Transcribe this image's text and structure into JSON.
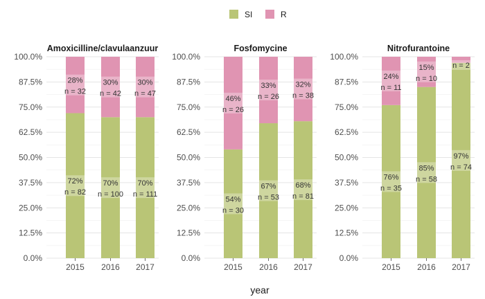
{
  "chart_data": {
    "type": "bar",
    "stacked": "percent",
    "xlabel": "year",
    "ylim": [
      0,
      100
    ],
    "y_ticks": [
      "0.0%",
      "12.5%",
      "25.0%",
      "37.5%",
      "50.0%",
      "62.5%",
      "75.0%",
      "87.5%",
      "100.0%"
    ],
    "legend": {
      "position": "top",
      "items": [
        {
          "name": "SI",
          "color": "#b9c576"
        },
        {
          "name": "R",
          "color": "#e094b2"
        }
      ]
    },
    "panels": [
      {
        "title": "Amoxicilline/clavulaanzuur",
        "categories": [
          "2015",
          "2016",
          "2017"
        ],
        "series": [
          {
            "name": "SI",
            "values": [
              72,
              70,
              70
            ],
            "pct_labels": [
              "72%",
              "70%",
              "70%"
            ],
            "n_labels": [
              "n = 82",
              "n = 100",
              "n = 111"
            ]
          },
          {
            "name": "R",
            "values": [
              28,
              30,
              30
            ],
            "pct_labels": [
              "28%",
              "30%",
              "30%"
            ],
            "n_labels": [
              "n = 32",
              "n = 42",
              "n = 47"
            ]
          }
        ]
      },
      {
        "title": "Fosfomycine",
        "categories": [
          "2015",
          "2016",
          "2017"
        ],
        "series": [
          {
            "name": "SI",
            "values": [
              54,
              67,
              68
            ],
            "pct_labels": [
              "54%",
              "67%",
              "68%"
            ],
            "n_labels": [
              "n = 30",
              "n = 53",
              "n = 81"
            ]
          },
          {
            "name": "R",
            "values": [
              46,
              33,
              32
            ],
            "pct_labels": [
              "46%",
              "33%",
              "32%"
            ],
            "n_labels": [
              "n = 26",
              "n = 26",
              "n = 38"
            ]
          }
        ]
      },
      {
        "title": "Nitrofurantoine",
        "categories": [
          "2015",
          "2016",
          "2017"
        ],
        "series": [
          {
            "name": "SI",
            "values": [
              76,
              85,
              97
            ],
            "pct_labels": [
              "76%",
              "85%",
              "97%"
            ],
            "n_labels": [
              "n = 35",
              "n = 58",
              "n = 74"
            ]
          },
          {
            "name": "R",
            "values": [
              24,
              15,
              3
            ],
            "pct_labels": [
              "24%",
              "15%",
              ""
            ],
            "n_labels": [
              "n = 11",
              "n = 10",
              "n = 2"
            ]
          }
        ]
      }
    ]
  }
}
